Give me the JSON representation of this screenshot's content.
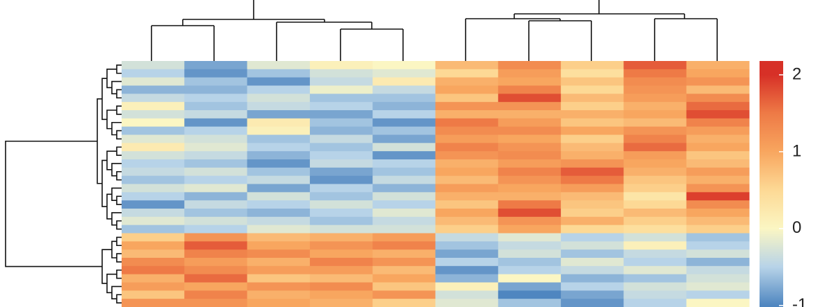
{
  "chart_data": {
    "type": "heatmap",
    "values": [
      [
        -0.3,
        -0.8,
        -0.2,
        0.1,
        0.0,
        0.8,
        1.3,
        0.6,
        1.7,
        0.9
      ],
      [
        -0.5,
        -0.9,
        -0.6,
        -0.3,
        -0.2,
        0.5,
        1.1,
        0.4,
        1.5,
        1.0
      ],
      [
        -0.2,
        -0.6,
        -0.9,
        -0.4,
        0.2,
        0.9,
        1.0,
        0.7,
        1.3,
        1.2
      ],
      [
        -0.7,
        -0.7,
        -0.5,
        -0.1,
        -0.4,
        1.0,
        1.4,
        0.5,
        1.2,
        0.8
      ],
      [
        -0.4,
        -0.5,
        -0.3,
        -0.6,
        -0.6,
        0.7,
        1.8,
        0.8,
        1.1,
        1.3
      ],
      [
        0.1,
        -0.6,
        -0.4,
        -0.5,
        -0.7,
        1.2,
        1.2,
        0.6,
        0.9,
        1.6
      ],
      [
        -0.3,
        -0.4,
        -0.8,
        -0.8,
        -0.5,
        0.9,
        0.9,
        0.9,
        1.0,
        1.8
      ],
      [
        0.0,
        -0.9,
        0.2,
        -0.6,
        -0.9,
        1.5,
        1.1,
        0.7,
        0.8,
        1.4
      ],
      [
        -0.6,
        -0.5,
        0.1,
        -0.7,
        -0.6,
        1.3,
        1.3,
        1.0,
        1.2,
        1.1
      ],
      [
        -0.2,
        -0.3,
        -0.6,
        -0.4,
        -0.8,
        1.1,
        1.0,
        0.6,
        1.4,
        0.9
      ],
      [
        0.2,
        -0.2,
        -0.5,
        -0.6,
        -0.3,
        1.4,
        1.2,
        0.8,
        1.6,
        1.0
      ],
      [
        -0.3,
        -0.4,
        -0.7,
        -0.5,
        -0.9,
        1.2,
        1.3,
        0.9,
        1.1,
        0.7
      ],
      [
        -0.5,
        -0.6,
        -0.9,
        -0.4,
        -0.5,
        0.9,
        1.1,
        1.2,
        1.0,
        0.8
      ],
      [
        -0.4,
        -0.3,
        -0.6,
        -0.8,
        -0.6,
        1.0,
        1.4,
        1.7,
        0.9,
        1.1
      ],
      [
        -0.6,
        -0.5,
        -0.4,
        -0.9,
        -0.4,
        0.8,
        1.2,
        1.5,
        0.7,
        0.9
      ],
      [
        -0.3,
        -0.2,
        -0.8,
        -0.5,
        -0.7,
        1.1,
        1.0,
        1.1,
        0.6,
        1.2
      ],
      [
        -0.5,
        -0.7,
        -0.3,
        -0.6,
        -0.3,
        0.9,
        0.9,
        0.8,
        0.3,
        1.9
      ],
      [
        -0.9,
        -0.4,
        -0.5,
        -0.3,
        -0.5,
        0.7,
        1.5,
        0.7,
        0.5,
        1.3
      ],
      [
        -0.4,
        -0.6,
        -0.7,
        -0.5,
        -0.2,
        1.0,
        1.8,
        0.6,
        0.8,
        1.0
      ],
      [
        -0.2,
        -0.3,
        -0.4,
        -0.6,
        -0.4,
        0.8,
        1.2,
        0.9,
        0.6,
        0.8
      ],
      [
        -0.6,
        -0.5,
        -0.2,
        -0.3,
        -0.3,
        0.6,
        1.0,
        0.5,
        0.4,
        0.6
      ],
      [
        0.6,
        1.2,
        0.8,
        0.9,
        1.1,
        -0.4,
        -0.2,
        -0.5,
        -0.3,
        -0.6
      ],
      [
        1.0,
        1.7,
        1.0,
        1.2,
        1.4,
        -0.6,
        -0.4,
        -0.3,
        0.1,
        -0.5
      ],
      [
        0.8,
        1.4,
        1.3,
        1.0,
        0.9,
        -0.8,
        -0.3,
        -0.6,
        -0.4,
        -0.3
      ],
      [
        1.3,
        1.1,
        0.9,
        1.4,
        1.2,
        -0.5,
        -0.6,
        -0.2,
        -0.5,
        -0.7
      ],
      [
        1.5,
        1.3,
        1.1,
        1.1,
        0.8,
        -0.9,
        -0.5,
        -0.4,
        -0.2,
        -0.4
      ],
      [
        0.9,
        1.6,
        0.7,
        0.8,
        1.0,
        -0.7,
        0.0,
        -0.7,
        -0.6,
        -0.3
      ],
      [
        1.1,
        1.0,
        1.2,
        1.3,
        0.7,
        0.1,
        -0.8,
        -0.5,
        -0.3,
        -0.2
      ],
      [
        0.7,
        1.4,
        0.9,
        1.0,
        1.2,
        -0.3,
        -1.0,
        -0.8,
        -0.4,
        -0.5
      ],
      [
        1.2,
        1.2,
        1.0,
        0.9,
        0.6,
        -0.2,
        -0.6,
        -0.9,
        -0.5,
        0.0
      ]
    ],
    "colorscale": [
      [
        -1,
        "#4f86c0"
      ],
      [
        -0.5,
        "#b7d3e8"
      ],
      [
        0,
        "#fbf6c3"
      ],
      [
        0.5,
        "#fdd995"
      ],
      [
        1,
        "#f8a65f"
      ],
      [
        1.5,
        "#ee7a46"
      ],
      [
        2,
        "#d73027"
      ]
    ],
    "clim": [
      -1.02,
      2.18
    ],
    "cticks": [
      2,
      1,
      0,
      -1
    ]
  }
}
